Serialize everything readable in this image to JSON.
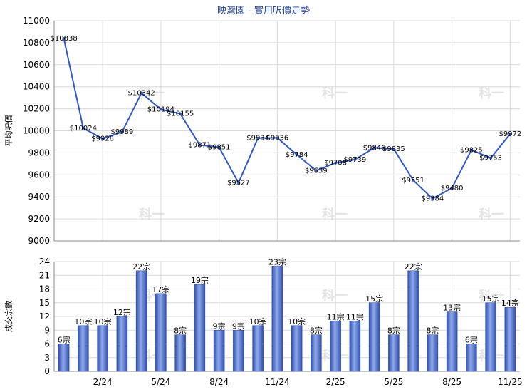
{
  "title": "映灣園 - 實用呎價走勢",
  "watermark": "科一",
  "colors": {
    "line": "#2f58c0",
    "bar_light": "#8fa9ea",
    "bar_dark": "#2f4fae",
    "grid": "#d9d9d9",
    "title": "#1f3f8f"
  },
  "chart_data": [
    {
      "type": "line",
      "ylabel": "平均呎價",
      "ylim": [
        9000,
        11000
      ],
      "yticks": [
        "9000",
        "9200",
        "9400",
        "9600",
        "9800",
        "10000",
        "10200",
        "10400",
        "10600",
        "10800",
        "11000"
      ],
      "values": [
        10838,
        10024,
        9928,
        9989,
        10342,
        10194,
        10155,
        9871,
        9851,
        9527,
        9934,
        9936,
        9784,
        9639,
        9708,
        9739,
        9846,
        9835,
        9551,
        9384,
        9480,
        9825,
        9753,
        9972
      ],
      "labels": [
        "$10838",
        "$10024",
        "$9928",
        "$9989",
        "$10342",
        "$10194",
        "$10155",
        "$9871",
        "$9851",
        "$9527",
        "$9934",
        "$9936",
        "$9784",
        "$9639",
        "$9708",
        "$9739",
        "$9846",
        "$9835",
        "$9551",
        "$9384",
        "$9480",
        "$9825",
        "$9753",
        "$9972"
      ]
    },
    {
      "type": "bar",
      "ylabel": "成交宗數",
      "ylim": [
        0,
        24
      ],
      "yticks": [
        "0",
        "3",
        "6",
        "9",
        "12",
        "15",
        "18",
        "21",
        "24"
      ],
      "values": [
        6,
        10,
        10,
        12,
        22,
        17,
        8,
        19,
        9,
        9,
        10,
        23,
        10,
        8,
        11,
        11,
        15,
        8,
        22,
        8,
        13,
        6,
        15,
        14
      ],
      "labels": [
        "6宗",
        "10宗",
        "10宗",
        "12宗",
        "22宗",
        "17宗",
        "8宗",
        "19宗",
        "9宗",
        "9宗",
        "10宗",
        "23宗",
        "10宗",
        "8宗",
        "11宗",
        "11宗",
        "15宗",
        "8宗",
        "22宗",
        "8宗",
        "13宗",
        "6宗",
        "15宗",
        "14宗"
      ],
      "xticks": [
        "2/24",
        "5/24",
        "8/24",
        "11/24",
        "2/25",
        "5/25",
        "8/25",
        "11/25"
      ]
    }
  ]
}
